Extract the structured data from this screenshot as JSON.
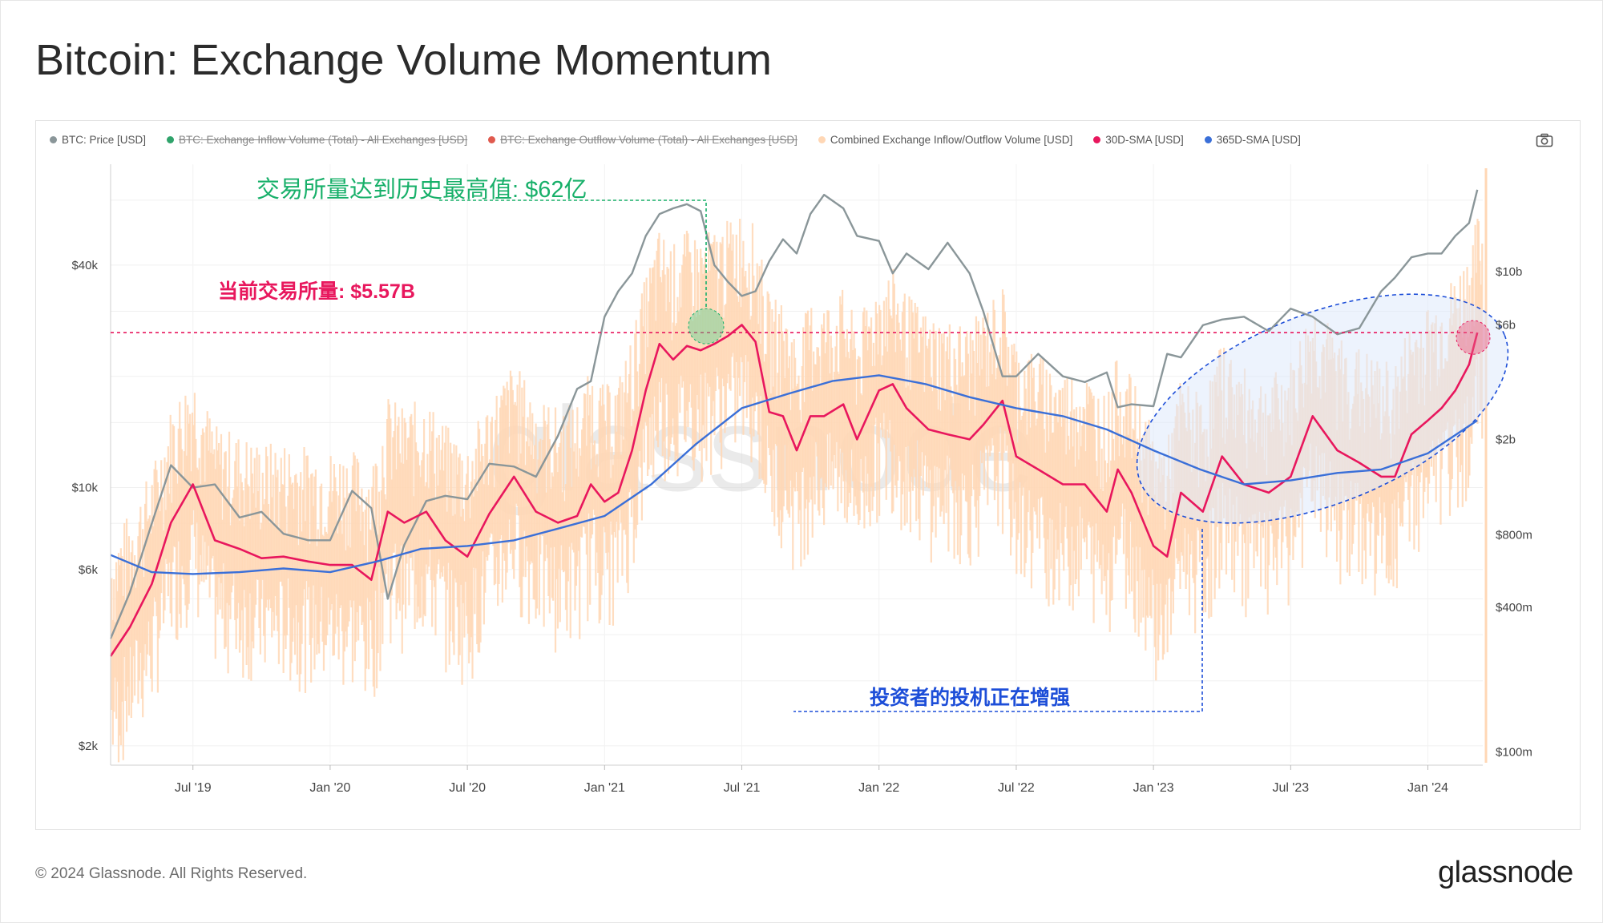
{
  "title": "Bitcoin: Exchange Volume Momentum",
  "legend": [
    {
      "label": "BTC: Price [USD]",
      "color": "#8a9699",
      "active": true
    },
    {
      "label": "BTC: Exchange Inflow Volume (Total) - All Exchanges [USD]",
      "color": "#2fa36b",
      "active": false
    },
    {
      "label": "BTC: Exchange Outflow Volume (Total) - All Exchanges [USD]",
      "color": "#e05a4e",
      "active": false
    },
    {
      "label": "Combined Exchange Inflow/Outflow Volume [USD]",
      "color": "#ffd7b5",
      "active": true
    },
    {
      "label": "30D-SMA [USD]",
      "color": "#e8175d",
      "active": true
    },
    {
      "label": "365D-SMA [USD]",
      "color": "#3a6fd8",
      "active": true
    }
  ],
  "icons": {
    "camera": "camera-icon"
  },
  "annotations": {
    "ath": "交易所量达到历史最高值: $62亿",
    "current": "当前交易所量: $5.57B",
    "speculation": "投资者的投机正在增强"
  },
  "colors": {
    "price": "#8a9699",
    "volume": "#ffd7b5",
    "sma30": "#e8175d",
    "sma365": "#3a6fd8",
    "ath": "#18b06a",
    "speculation": "#1d4ed8"
  },
  "footer": "© 2024 Glassnode. All Rights Reserved.",
  "brand": "glassnode",
  "watermark": "glassnode",
  "chart_data": {
    "type": "line",
    "title": "Bitcoin: Exchange Volume Momentum",
    "x_ticks": [
      "Jul '19",
      "Jan '20",
      "Jul '20",
      "Jan '21",
      "Jul '21",
      "Jan '22",
      "Jul '22",
      "Jan '23",
      "Jul '23",
      "Jan '24"
    ],
    "y_left": {
      "scale": "log",
      "ticks": [
        "$2k",
        "$6k",
        "$10k",
        "$40k"
      ],
      "tick_values": [
        2000,
        6000,
        10000,
        40000
      ],
      "range": [
        1800,
        75000
      ]
    },
    "y_right": {
      "scale": "log",
      "ticks": [
        "$100m",
        "$400m",
        "$800m",
        "$2b",
        "$6b",
        "$10b"
      ],
      "tick_values": [
        100,
        400,
        800,
        2000,
        6000,
        10000
      ],
      "range": [
        90,
        28000
      ]
    },
    "x_range": [
      2019.2,
      2024.2
    ],
    "reference_line": {
      "value": 5570,
      "axis": "right"
    },
    "ath_value": 6200,
    "series": [
      {
        "name": "BTC: Price [USD]",
        "axis": "left",
        "x": [
          2019.2,
          2019.27,
          2019.35,
          2019.42,
          2019.5,
          2019.58,
          2019.67,
          2019.75,
          2019.83,
          2019.92,
          2020.0,
          2020.08,
          2020.15,
          2020.21,
          2020.27,
          2020.35,
          2020.42,
          2020.5,
          2020.58,
          2020.67,
          2020.75,
          2020.83,
          2020.9,
          2020.95,
          2021.0,
          2021.05,
          2021.1,
          2021.15,
          2021.2,
          2021.25,
          2021.3,
          2021.35,
          2021.4,
          2021.45,
          2021.5,
          2021.55,
          2021.6,
          2021.65,
          2021.7,
          2021.75,
          2021.8,
          2021.87,
          2021.92,
          2022.0,
          2022.05,
          2022.1,
          2022.18,
          2022.25,
          2022.33,
          2022.38,
          2022.45,
          2022.5,
          2022.58,
          2022.67,
          2022.75,
          2022.83,
          2022.87,
          2022.92,
          2023.0,
          2023.05,
          2023.1,
          2023.18,
          2023.25,
          2023.33,
          2023.42,
          2023.5,
          2023.58,
          2023.67,
          2023.75,
          2023.83,
          2023.88,
          2023.94,
          2024.0,
          2024.05,
          2024.1,
          2024.15,
          2024.18
        ],
        "values": [
          3900,
          5200,
          8000,
          11500,
          10000,
          10200,
          8300,
          8600,
          7500,
          7200,
          7200,
          9800,
          8800,
          5000,
          7000,
          9200,
          9500,
          9300,
          11600,
          11400,
          10700,
          13800,
          18500,
          19400,
          29000,
          34000,
          38000,
          48000,
          55000,
          57000,
          58500,
          56000,
          40000,
          36000,
          33000,
          34000,
          41000,
          47000,
          43000,
          55000,
          62000,
          57000,
          48000,
          46500,
          38000,
          43000,
          39000,
          46000,
          38000,
          30000,
          20000,
          20000,
          23000,
          20000,
          19300,
          20500,
          16500,
          16800,
          16600,
          23000,
          22500,
          27500,
          28500,
          29000,
          26500,
          30500,
          29000,
          26000,
          27000,
          34000,
          37000,
          42000,
          43000,
          43000,
          48000,
          52000,
          64000
        ]
      },
      {
        "name": "30D-SMA [USD]",
        "axis": "right",
        "x": [
          2019.2,
          2019.27,
          2019.35,
          2019.42,
          2019.5,
          2019.58,
          2019.67,
          2019.75,
          2019.83,
          2019.92,
          2020.0,
          2020.08,
          2020.15,
          2020.21,
          2020.27,
          2020.35,
          2020.42,
          2020.5,
          2020.58,
          2020.67,
          2020.75,
          2020.83,
          2020.9,
          2020.95,
          2021.0,
          2021.05,
          2021.1,
          2021.15,
          2021.2,
          2021.25,
          2021.3,
          2021.35,
          2021.4,
          2021.45,
          2021.5,
          2021.55,
          2021.6,
          2021.65,
          2021.7,
          2021.75,
          2021.8,
          2021.87,
          2021.92,
          2022.0,
          2022.05,
          2022.1,
          2022.18,
          2022.25,
          2022.33,
          2022.38,
          2022.45,
          2022.5,
          2022.58,
          2022.67,
          2022.75,
          2022.83,
          2022.87,
          2022.92,
          2023.0,
          2023.05,
          2023.1,
          2023.18,
          2023.25,
          2023.33,
          2023.42,
          2023.5,
          2023.58,
          2023.67,
          2023.75,
          2023.83,
          2023.88,
          2023.94,
          2024.0,
          2024.05,
          2024.1,
          2024.15,
          2024.18
        ],
        "values": [
          250,
          330,
          500,
          900,
          1300,
          760,
          700,
          640,
          650,
          620,
          600,
          600,
          520,
          1000,
          900,
          1000,
          760,
          650,
          980,
          1400,
          1000,
          900,
          960,
          1300,
          1100,
          1200,
          1800,
          3200,
          5000,
          4300,
          4900,
          4700,
          5000,
          5400,
          6000,
          5100,
          2600,
          2500,
          1800,
          2500,
          2500,
          2800,
          2000,
          3200,
          3400,
          2700,
          2200,
          2100,
          2000,
          2300,
          2900,
          1700,
          1500,
          1300,
          1300,
          1000,
          1500,
          1200,
          720,
          650,
          1200,
          1000,
          1700,
          1300,
          1200,
          1400,
          2500,
          1800,
          1600,
          1400,
          1400,
          2100,
          2400,
          2700,
          3200,
          4100,
          5570
        ]
      },
      {
        "name": "365D-SMA [USD]",
        "axis": "right",
        "x": [
          2019.2,
          2019.35,
          2019.5,
          2019.67,
          2019.83,
          2020.0,
          2020.17,
          2020.33,
          2020.5,
          2020.67,
          2020.83,
          2021.0,
          2021.17,
          2021.33,
          2021.5,
          2021.67,
          2021.83,
          2022.0,
          2022.17,
          2022.33,
          2022.5,
          2022.67,
          2022.83,
          2023.0,
          2023.17,
          2023.33,
          2023.5,
          2023.67,
          2023.83,
          2024.0,
          2024.18
        ],
        "values": [
          660,
          560,
          550,
          560,
          580,
          560,
          620,
          700,
          720,
          760,
          850,
          960,
          1300,
          1900,
          2700,
          3100,
          3500,
          3700,
          3400,
          3000,
          2700,
          2500,
          2200,
          1800,
          1500,
          1300,
          1350,
          1450,
          1500,
          1750,
          2400
        ]
      }
    ]
  }
}
